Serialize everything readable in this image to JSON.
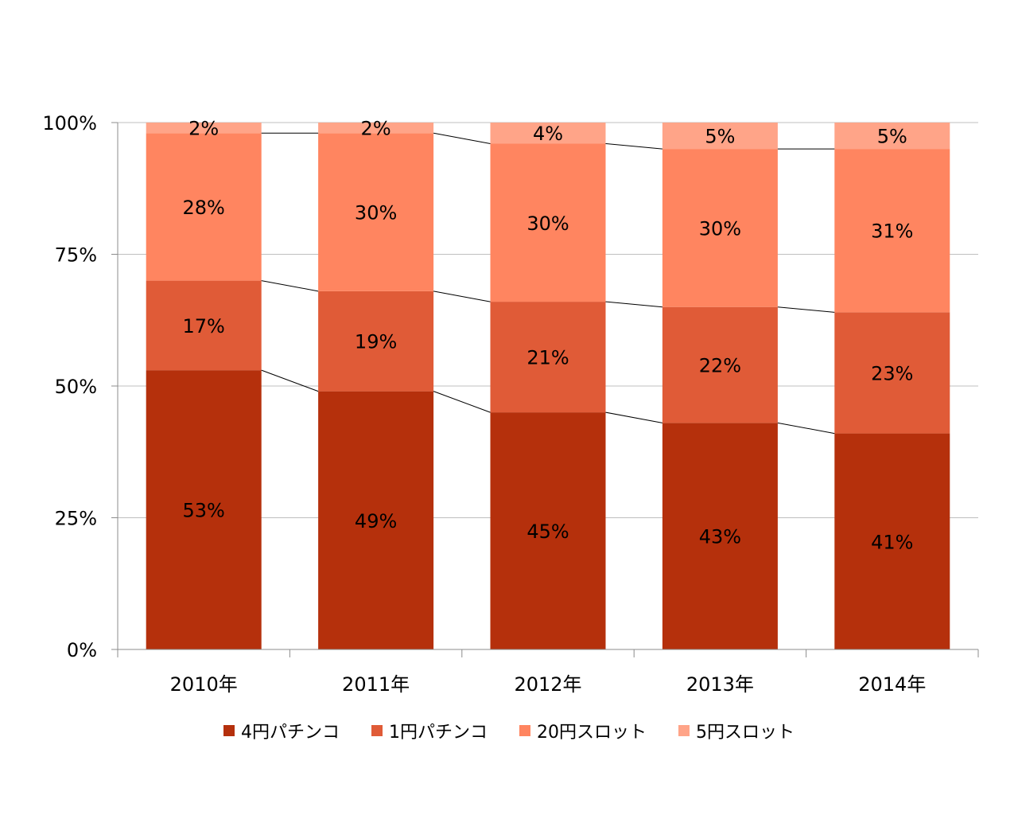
{
  "chart_data": {
    "type": "bar",
    "stacked": true,
    "categories": [
      "2010年",
      "2011年",
      "2012年",
      "2013年",
      "2014年"
    ],
    "series": [
      {
        "name": "4円パチンコ",
        "values": [
          53,
          49,
          45,
          43,
          41
        ],
        "labels": [
          "53%",
          "49%",
          "45%",
          "43%",
          "41%"
        ],
        "color": "#b5300c"
      },
      {
        "name": "1円パチンコ",
        "values": [
          17,
          19,
          21,
          22,
          23
        ],
        "labels": [
          "17%",
          "19%",
          "21%",
          "22%",
          "23%"
        ],
        "color": "#e05b37"
      },
      {
        "name": "20円スロット",
        "values": [
          28,
          30,
          30,
          30,
          31
        ],
        "labels": [
          "28%",
          "30%",
          "30%",
          "30%",
          "31%"
        ],
        "color": "#ff8560"
      },
      {
        "name": "5円スロット",
        "values": [
          2,
          2,
          4,
          5,
          5
        ],
        "labels": [
          "2%",
          "2%",
          "4%",
          "5%",
          "5%"
        ],
        "color": "#ffa488"
      }
    ],
    "y_ticks": [
      {
        "value": 0,
        "label": "0%"
      },
      {
        "value": 25,
        "label": "25%"
      },
      {
        "value": 50,
        "label": "50%"
      },
      {
        "value": 75,
        "label": "75%"
      },
      {
        "value": 100,
        "label": "100%"
      }
    ],
    "ylim": [
      0,
      100
    ],
    "grid": true,
    "series_lines": true,
    "legend_position": "bottom",
    "title": "",
    "xlabel": "",
    "ylabel": ""
  }
}
